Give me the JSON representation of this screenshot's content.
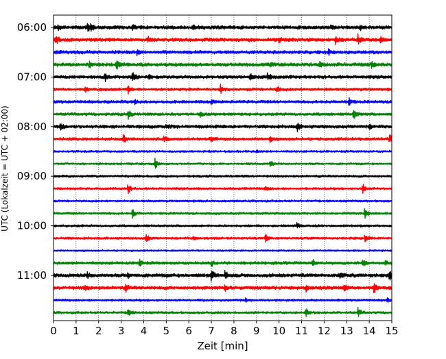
{
  "chart_data": {
    "type": "line",
    "chart_kind": "seismogram helicorder",
    "title": "",
    "xlabel": "Zeit  [min]",
    "ylabel": "UTC (Lokalzeit = UTC + 02:00)",
    "xlim": [
      0,
      15
    ],
    "x_ticks": [
      "0",
      "1",
      "2",
      "3",
      "4",
      "5",
      "6",
      "7",
      "8",
      "9",
      "10",
      "11",
      "12",
      "13",
      "14",
      "15"
    ],
    "y_tick_labels": [
      "06:00",
      "07:00",
      "08:00",
      "09:00",
      "10:00",
      "11:00"
    ],
    "y_tick_rows": [
      0,
      4,
      8,
      12,
      16,
      20
    ],
    "grid": "vertical dotted at each minute",
    "legend": "none",
    "trace_colors": [
      "#000000",
      "#ff0000",
      "#0000ff",
      "#008000"
    ],
    "traces": [
      {
        "start": "06:00",
        "color": "#000000",
        "amp": 3.0,
        "events": [
          {
            "t": 1.5,
            "amp": 6
          },
          {
            "t": 1.65,
            "amp": 5
          },
          {
            "t": 0.2,
            "amp": 3
          },
          {
            "t": 3.5,
            "amp": 3
          },
          {
            "t": 6.2,
            "amp": 3
          },
          {
            "t": 12.3,
            "amp": 3
          },
          {
            "t": 13.6,
            "amp": 3
          }
        ]
      },
      {
        "start": "06:15",
        "color": "#ff0000",
        "amp": 3.0,
        "events": [
          {
            "t": 0.1,
            "amp": 8
          },
          {
            "t": 4.2,
            "amp": 3
          },
          {
            "t": 10.0,
            "amp": 4
          },
          {
            "t": 12.5,
            "amp": 5
          },
          {
            "t": 13.5,
            "amp": 6
          },
          {
            "t": 14.5,
            "amp": 3
          }
        ]
      },
      {
        "start": "06:30",
        "color": "#0000ff",
        "amp": 2.8,
        "events": [
          {
            "t": 0.1,
            "amp": 3
          },
          {
            "t": 3.7,
            "amp": 3
          },
          {
            "t": 12.2,
            "amp": 4
          }
        ]
      },
      {
        "start": "06:45",
        "color": "#008000",
        "amp": 3.0,
        "events": [
          {
            "t": 1.6,
            "amp": 5
          },
          {
            "t": 2.8,
            "amp": 7
          },
          {
            "t": 9.6,
            "amp": 3
          },
          {
            "t": 11.8,
            "amp": 3
          },
          {
            "t": 14.1,
            "amp": 4
          }
        ]
      },
      {
        "start": "07:00",
        "color": "#000000",
        "amp": 2.8,
        "events": [
          {
            "t": 2.3,
            "amp": 6
          },
          {
            "t": 3.5,
            "amp": 7
          },
          {
            "t": 4.2,
            "amp": 4
          },
          {
            "t": 8.7,
            "amp": 6
          },
          {
            "t": 9.5,
            "amp": 6
          }
        ]
      },
      {
        "start": "07:15",
        "color": "#ff0000",
        "amp": 2.5,
        "events": [
          {
            "t": 1.4,
            "amp": 3
          },
          {
            "t": 3.3,
            "amp": 6
          },
          {
            "t": 7.4,
            "amp": 7
          },
          {
            "t": 9.9,
            "amp": 4
          }
        ]
      },
      {
        "start": "07:30",
        "color": "#0000ff",
        "amp": 2.5,
        "events": [
          {
            "t": 3.6,
            "amp": 3
          },
          {
            "t": 7.0,
            "amp": 3
          },
          {
            "t": 13.1,
            "amp": 7
          }
        ]
      },
      {
        "start": "07:45",
        "color": "#008000",
        "amp": 2.5,
        "events": [
          {
            "t": 3.3,
            "amp": 7
          },
          {
            "t": 6.5,
            "amp": 3
          },
          {
            "t": 13.3,
            "amp": 8
          }
        ]
      },
      {
        "start": "08:00",
        "color": "#000000",
        "amp": 2.8,
        "events": [
          {
            "t": 0.3,
            "amp": 7
          },
          {
            "t": 5.0,
            "amp": 3
          },
          {
            "t": 10.8,
            "amp": 7
          },
          {
            "t": 14.0,
            "amp": 3
          }
        ]
      },
      {
        "start": "08:15",
        "color": "#ff0000",
        "amp": 2.5,
        "events": [
          {
            "t": 3.1,
            "amp": 7
          },
          {
            "t": 4.9,
            "amp": 4
          },
          {
            "t": 7.0,
            "amp": 3
          },
          {
            "t": 9.6,
            "amp": 4
          },
          {
            "t": 14.9,
            "amp": 9
          }
        ]
      },
      {
        "start": "08:30",
        "color": "#0000ff",
        "amp": 1.8,
        "events": [
          {
            "t": 9.0,
            "amp": 2
          }
        ]
      },
      {
        "start": "08:45",
        "color": "#008000",
        "amp": 1.8,
        "events": [
          {
            "t": 4.5,
            "amp": 8
          },
          {
            "t": 9.6,
            "amp": 5
          }
        ]
      },
      {
        "start": "09:00",
        "color": "#000000",
        "amp": 2.0,
        "events": []
      },
      {
        "start": "09:15",
        "color": "#ff0000",
        "amp": 2.0,
        "events": [
          {
            "t": 3.3,
            "amp": 7
          },
          {
            "t": 9.4,
            "amp": 4
          },
          {
            "t": 13.7,
            "amp": 8
          }
        ]
      },
      {
        "start": "09:30",
        "color": "#0000ff",
        "amp": 1.8,
        "events": []
      },
      {
        "start": "09:45",
        "color": "#008000",
        "amp": 2.0,
        "events": [
          {
            "t": 3.5,
            "amp": 7
          },
          {
            "t": 13.8,
            "amp": 9
          }
        ]
      },
      {
        "start": "10:00",
        "color": "#000000",
        "amp": 2.0,
        "events": [
          {
            "t": 10.8,
            "amp": 4
          }
        ]
      },
      {
        "start": "10:15",
        "color": "#ff0000",
        "amp": 2.0,
        "events": [
          {
            "t": 4.1,
            "amp": 7
          },
          {
            "t": 6.2,
            "amp": 3
          },
          {
            "t": 9.4,
            "amp": 6
          },
          {
            "t": 13.8,
            "amp": 7
          }
        ]
      },
      {
        "start": "10:30",
        "color": "#0000ff",
        "amp": 1.5,
        "events": []
      },
      {
        "start": "10:45",
        "color": "#008000",
        "amp": 2.5,
        "events": [
          {
            "t": 3.8,
            "amp": 6
          },
          {
            "t": 7.0,
            "amp": 4
          },
          {
            "t": 11.5,
            "amp": 4
          },
          {
            "t": 13.7,
            "amp": 6
          },
          {
            "t": 14.7,
            "amp": 4
          }
        ]
      },
      {
        "start": "11:00",
        "color": "#000000",
        "amp": 3.0,
        "events": [
          {
            "t": 1.5,
            "amp": 4
          },
          {
            "t": 3.3,
            "amp": 4
          },
          {
            "t": 7.0,
            "amp": 8
          },
          {
            "t": 7.6,
            "amp": 6
          },
          {
            "t": 12.7,
            "amp": 4
          },
          {
            "t": 14.9,
            "amp": 7
          }
        ]
      },
      {
        "start": "11:15",
        "color": "#ff0000",
        "amp": 3.0,
        "events": [
          {
            "t": 1.4,
            "amp": 4
          },
          {
            "t": 3.2,
            "amp": 5
          },
          {
            "t": 7.6,
            "amp": 4
          },
          {
            "t": 11.2,
            "amp": 5
          },
          {
            "t": 12.9,
            "amp": 5
          },
          {
            "t": 14.2,
            "amp": 8
          }
        ]
      },
      {
        "start": "11:30",
        "color": "#0000ff",
        "amp": 2.0,
        "events": [
          {
            "t": 8.5,
            "amp": 3
          },
          {
            "t": 14.8,
            "amp": 3
          }
        ]
      },
      {
        "start": "11:45",
        "color": "#008000",
        "amp": 2.0,
        "events": [
          {
            "t": 3.3,
            "amp": 6
          },
          {
            "t": 11.2,
            "amp": 6
          },
          {
            "t": 13.5,
            "amp": 7
          }
        ]
      }
    ]
  }
}
